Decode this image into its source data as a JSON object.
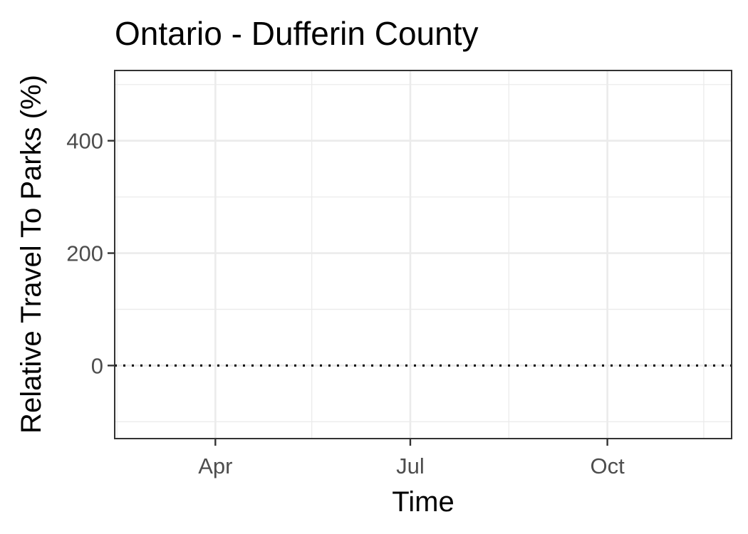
{
  "chart_data": {
    "type": "line",
    "title": "Ontario - Dufferin County",
    "xlabel": "Time",
    "ylabel": "Relative Travel To Parks (%)",
    "x_ticks": [
      {
        "label": "Apr",
        "date": "2020-04-01"
      },
      {
        "label": "Jul",
        "date": "2020-07-01"
      },
      {
        "label": "Oct",
        "date": "2020-10-01"
      }
    ],
    "x_minor_dates": [
      "2020-02-15",
      "2020-05-16",
      "2020-08-16",
      "2020-11-15"
    ],
    "xlim": [
      "2020-02-14",
      "2020-11-28"
    ],
    "y_ticks": [
      0,
      200,
      400
    ],
    "y_minor": [
      -100,
      100,
      300,
      500
    ],
    "ylim": [
      -130,
      525
    ],
    "reference_line": {
      "y": 0,
      "style": "dotted",
      "color": "#000000"
    },
    "series": [],
    "grid": true,
    "theme": "bw"
  }
}
